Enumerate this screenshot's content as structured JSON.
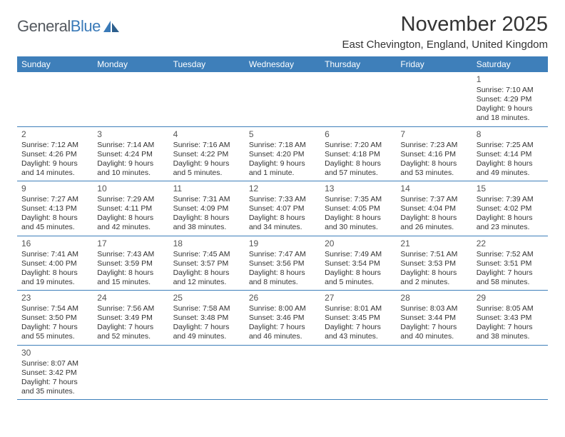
{
  "logo": {
    "textA": "General",
    "textB": "Blue"
  },
  "title": "November 2025",
  "location": "East Chevington, England, United Kingdom",
  "colors": {
    "header_bg": "#3e7fba",
    "header_text": "#ffffff",
    "border": "#3e7fba",
    "text": "#333333",
    "logo_gray": "#54595f",
    "logo_blue": "#3a7ab8",
    "background": "#ffffff"
  },
  "dayNames": [
    "Sunday",
    "Monday",
    "Tuesday",
    "Wednesday",
    "Thursday",
    "Friday",
    "Saturday"
  ],
  "weeks": [
    [
      null,
      null,
      null,
      null,
      null,
      null,
      {
        "n": "1",
        "sr": "7:10 AM",
        "ss": "4:29 PM",
        "dl": "9 hours and 18 minutes."
      }
    ],
    [
      {
        "n": "2",
        "sr": "7:12 AM",
        "ss": "4:26 PM",
        "dl": "9 hours and 14 minutes."
      },
      {
        "n": "3",
        "sr": "7:14 AM",
        "ss": "4:24 PM",
        "dl": "9 hours and 10 minutes."
      },
      {
        "n": "4",
        "sr": "7:16 AM",
        "ss": "4:22 PM",
        "dl": "9 hours and 5 minutes."
      },
      {
        "n": "5",
        "sr": "7:18 AM",
        "ss": "4:20 PM",
        "dl": "9 hours and 1 minute."
      },
      {
        "n": "6",
        "sr": "7:20 AM",
        "ss": "4:18 PM",
        "dl": "8 hours and 57 minutes."
      },
      {
        "n": "7",
        "sr": "7:23 AM",
        "ss": "4:16 PM",
        "dl": "8 hours and 53 minutes."
      },
      {
        "n": "8",
        "sr": "7:25 AM",
        "ss": "4:14 PM",
        "dl": "8 hours and 49 minutes."
      }
    ],
    [
      {
        "n": "9",
        "sr": "7:27 AM",
        "ss": "4:13 PM",
        "dl": "8 hours and 45 minutes."
      },
      {
        "n": "10",
        "sr": "7:29 AM",
        "ss": "4:11 PM",
        "dl": "8 hours and 42 minutes."
      },
      {
        "n": "11",
        "sr": "7:31 AM",
        "ss": "4:09 PM",
        "dl": "8 hours and 38 minutes."
      },
      {
        "n": "12",
        "sr": "7:33 AM",
        "ss": "4:07 PM",
        "dl": "8 hours and 34 minutes."
      },
      {
        "n": "13",
        "sr": "7:35 AM",
        "ss": "4:05 PM",
        "dl": "8 hours and 30 minutes."
      },
      {
        "n": "14",
        "sr": "7:37 AM",
        "ss": "4:04 PM",
        "dl": "8 hours and 26 minutes."
      },
      {
        "n": "15",
        "sr": "7:39 AM",
        "ss": "4:02 PM",
        "dl": "8 hours and 23 minutes."
      }
    ],
    [
      {
        "n": "16",
        "sr": "7:41 AM",
        "ss": "4:00 PM",
        "dl": "8 hours and 19 minutes."
      },
      {
        "n": "17",
        "sr": "7:43 AM",
        "ss": "3:59 PM",
        "dl": "8 hours and 15 minutes."
      },
      {
        "n": "18",
        "sr": "7:45 AM",
        "ss": "3:57 PM",
        "dl": "8 hours and 12 minutes."
      },
      {
        "n": "19",
        "sr": "7:47 AM",
        "ss": "3:56 PM",
        "dl": "8 hours and 8 minutes."
      },
      {
        "n": "20",
        "sr": "7:49 AM",
        "ss": "3:54 PM",
        "dl": "8 hours and 5 minutes."
      },
      {
        "n": "21",
        "sr": "7:51 AM",
        "ss": "3:53 PM",
        "dl": "8 hours and 2 minutes."
      },
      {
        "n": "22",
        "sr": "7:52 AM",
        "ss": "3:51 PM",
        "dl": "7 hours and 58 minutes."
      }
    ],
    [
      {
        "n": "23",
        "sr": "7:54 AM",
        "ss": "3:50 PM",
        "dl": "7 hours and 55 minutes."
      },
      {
        "n": "24",
        "sr": "7:56 AM",
        "ss": "3:49 PM",
        "dl": "7 hours and 52 minutes."
      },
      {
        "n": "25",
        "sr": "7:58 AM",
        "ss": "3:48 PM",
        "dl": "7 hours and 49 minutes."
      },
      {
        "n": "26",
        "sr": "8:00 AM",
        "ss": "3:46 PM",
        "dl": "7 hours and 46 minutes."
      },
      {
        "n": "27",
        "sr": "8:01 AM",
        "ss": "3:45 PM",
        "dl": "7 hours and 43 minutes."
      },
      {
        "n": "28",
        "sr": "8:03 AM",
        "ss": "3:44 PM",
        "dl": "7 hours and 40 minutes."
      },
      {
        "n": "29",
        "sr": "8:05 AM",
        "ss": "3:43 PM",
        "dl": "7 hours and 38 minutes."
      }
    ],
    [
      {
        "n": "30",
        "sr": "8:07 AM",
        "ss": "3:42 PM",
        "dl": "7 hours and 35 minutes."
      },
      null,
      null,
      null,
      null,
      null,
      null
    ]
  ],
  "labels": {
    "sunrise": "Sunrise: ",
    "sunset": "Sunset: ",
    "daylight": "Daylight: "
  }
}
